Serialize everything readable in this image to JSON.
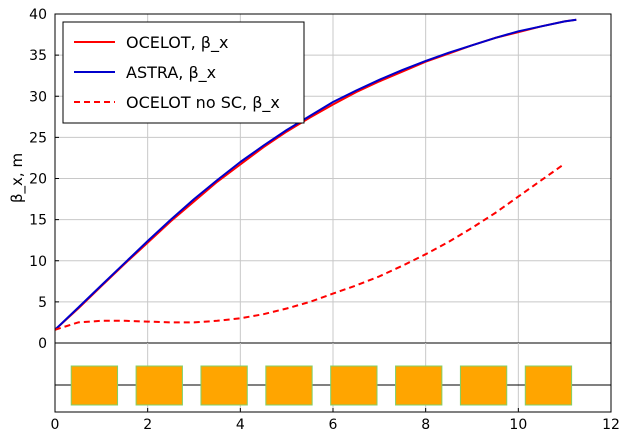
{
  "chart_data": {
    "type": "line",
    "ylabel": "β_x, m",
    "xlabel": "",
    "xlim": [
      0,
      12
    ],
    "ylim": [
      0,
      40
    ],
    "x_ticks": [
      "0",
      "2",
      "4",
      "6",
      "8",
      "10",
      "12"
    ],
    "y_ticks": [
      "0",
      "5",
      "10",
      "15",
      "20",
      "25",
      "30",
      "35",
      "40"
    ],
    "grid": true,
    "legend_position": "top-left",
    "series": [
      {
        "name": "OCELOT, β_x",
        "color": "#ff0000",
        "style": "solid",
        "x": [
          0,
          0.5,
          1,
          1.5,
          2,
          2.5,
          3,
          3.5,
          4,
          4.5,
          5,
          5.5,
          6,
          6.5,
          7,
          7.5,
          8,
          8.5,
          9,
          9.5,
          10,
          10.5,
          11,
          11.25
        ],
        "y": [
          1.6,
          4.2,
          6.9,
          9.6,
          12.2,
          14.8,
          17.2,
          19.6,
          21.7,
          23.8,
          25.7,
          27.4,
          29.0,
          30.5,
          31.8,
          33.0,
          34.2,
          35.2,
          36.2,
          37.1,
          37.8,
          38.5,
          39.1,
          39.3
        ]
      },
      {
        "name": "ASTRA, β_x",
        "color": "#0000cc",
        "style": "solid",
        "x": [
          0,
          0.5,
          1,
          1.5,
          2,
          2.5,
          3,
          3.5,
          4,
          4.5,
          5,
          5.5,
          6,
          6.5,
          7,
          7.5,
          8,
          8.5,
          9,
          9.5,
          10,
          10.5,
          11,
          11.25
        ],
        "y": [
          1.6,
          4.3,
          7.0,
          9.7,
          12.4,
          15.0,
          17.5,
          19.8,
          22.0,
          24.0,
          25.9,
          27.6,
          29.3,
          30.7,
          32.0,
          33.2,
          34.3,
          35.3,
          36.2,
          37.1,
          37.9,
          38.5,
          39.1,
          39.3
        ]
      },
      {
        "name": "OCELOT no SC, β_x",
        "color": "#ff0000",
        "style": "dashed",
        "x": [
          0,
          0.5,
          1,
          1.5,
          2,
          2.5,
          3,
          3.5,
          4,
          4.5,
          5,
          5.5,
          6,
          6.5,
          7,
          7.5,
          8,
          8.5,
          9,
          9.5,
          10,
          10.5,
          11
        ],
        "y": [
          1.6,
          2.5,
          2.7,
          2.7,
          2.6,
          2.5,
          2.5,
          2.7,
          3.0,
          3.5,
          4.2,
          5.0,
          6.0,
          7.0,
          8.1,
          9.4,
          10.8,
          12.3,
          14.0,
          15.8,
          17.8,
          19.8,
          21.8
        ]
      }
    ],
    "elements_panel": {
      "boxes_x": [
        [
          0.35,
          1.35
        ],
        [
          1.75,
          2.75
        ],
        [
          3.15,
          4.15
        ],
        [
          4.55,
          5.55
        ],
        [
          5.95,
          6.95
        ],
        [
          7.35,
          8.35
        ],
        [
          8.75,
          9.75
        ],
        [
          10.15,
          11.15
        ]
      ],
      "box_color": "#ffa500",
      "box_edge_color": "#7fd16a",
      "line_color": "#000000"
    }
  }
}
